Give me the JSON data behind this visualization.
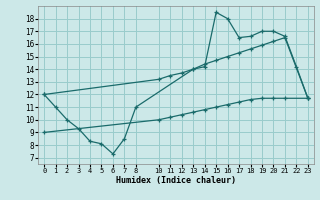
{
  "xlabel": "Humidex (Indice chaleur)",
  "bg_color": "#cce8e8",
  "grid_color": "#99cccc",
  "line_color": "#1a6b6b",
  "xlim": [
    -0.5,
    23.5
  ],
  "ylim": [
    6.5,
    19.0
  ],
  "yticks": [
    7,
    8,
    9,
    10,
    11,
    12,
    13,
    14,
    15,
    16,
    17,
    18
  ],
  "xticks": [
    0,
    1,
    2,
    3,
    4,
    5,
    6,
    7,
    8,
    10,
    11,
    12,
    13,
    14,
    15,
    16,
    17,
    18,
    19,
    20,
    21,
    22,
    23
  ],
  "line1_x": [
    0,
    1,
    2,
    3,
    4,
    5,
    6,
    7,
    8,
    13,
    14,
    15,
    16,
    17,
    18,
    19,
    20,
    21,
    22,
    23
  ],
  "line1_y": [
    12,
    11,
    10,
    9.3,
    8.3,
    8.1,
    7.3,
    8.5,
    11,
    14.0,
    14.2,
    18.5,
    18.0,
    16.5,
    16.6,
    17.0,
    17.0,
    16.6,
    14.2,
    11.7
  ],
  "line2_x": [
    0,
    10,
    11,
    12,
    13,
    14,
    15,
    16,
    17,
    18,
    19,
    20,
    21,
    23
  ],
  "line2_y": [
    12,
    13.2,
    13.5,
    13.7,
    14.0,
    14.4,
    14.7,
    15.0,
    15.3,
    15.6,
    15.9,
    16.2,
    16.5,
    11.7
  ],
  "line3_x": [
    0,
    10,
    11,
    12,
    13,
    14,
    15,
    16,
    17,
    18,
    19,
    20,
    21,
    23
  ],
  "line3_y": [
    9,
    10.0,
    10.2,
    10.4,
    10.6,
    10.8,
    11.0,
    11.2,
    11.4,
    11.6,
    11.7,
    11.7,
    11.7,
    11.7
  ]
}
